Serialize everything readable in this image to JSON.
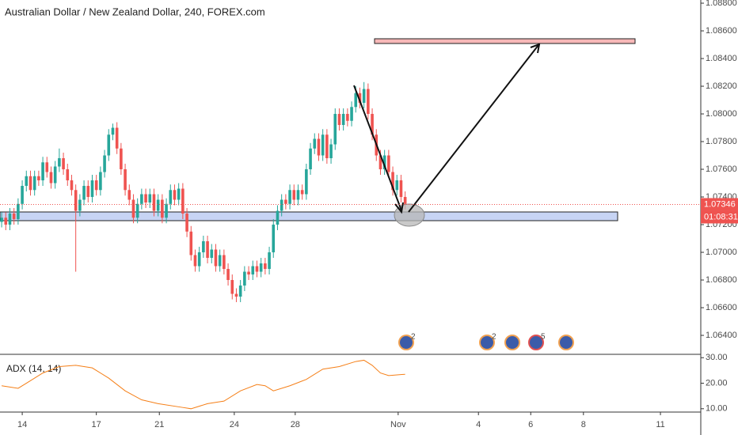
{
  "chart_data": [
    {
      "type": "candlestick",
      "title": "Australian Dollar / New Zealand Dollar, 240, FOREX.com",
      "xlim": [
        -0.4,
        169.8
      ],
      "xticks": [
        {
          "value": 5,
          "label": "14"
        },
        {
          "value": 23,
          "label": "17"
        },
        {
          "value": 38.3,
          "label": "21"
        },
        {
          "value": 56.5,
          "label": "24"
        },
        {
          "value": 71.3,
          "label": "28"
        },
        {
          "value": 96.3,
          "label": "Nov"
        },
        {
          "value": 115.8,
          "label": "4"
        },
        {
          "value": 128.5,
          "label": "6"
        },
        {
          "value": 141.3,
          "label": "8"
        },
        {
          "value": 160,
          "label": "11"
        }
      ],
      "ylim": [
        1.06263,
        1.08823
      ],
      "yticks": [
        {
          "value": 1.088,
          "label": "1.08800"
        },
        {
          "value": 1.086,
          "label": "1.08600"
        },
        {
          "value": 1.084,
          "label": "1.08400"
        },
        {
          "value": 1.082,
          "label": "1.08200"
        },
        {
          "value": 1.08,
          "label": "1.08000"
        },
        {
          "value": 1.078,
          "label": "1.07800"
        },
        {
          "value": 1.076,
          "label": "1.07600"
        },
        {
          "value": 1.074,
          "label": "1.07400"
        },
        {
          "value": 1.072,
          "label": "1.07200"
        },
        {
          "value": 1.07,
          "label": "1.07000"
        },
        {
          "value": 1.068,
          "label": "1.06800"
        },
        {
          "value": 1.066,
          "label": "1.06600"
        },
        {
          "value": 1.064,
          "label": "1.06400"
        }
      ],
      "up_color": "#26a69a",
      "down_color": "#ef5350",
      "open": [
        1.0722,
        1.0725,
        1.072,
        1.0728,
        1.0724,
        1.0735,
        1.0748,
        1.0755,
        1.0745,
        1.0755,
        1.0752,
        1.0765,
        1.0758,
        1.075,
        1.0762,
        1.0768,
        1.076,
        1.0752,
        1.0745,
        1.073,
        1.0738,
        1.0748,
        1.074,
        1.0752,
        1.0745,
        1.0758,
        1.077,
        1.0785,
        1.079,
        1.0775,
        1.076,
        1.0745,
        1.0738,
        1.0725,
        1.0735,
        1.0742,
        1.0736,
        1.0742,
        1.073,
        1.0738,
        1.0725,
        1.0735,
        1.0745,
        1.0738,
        1.0746,
        1.0728,
        1.0715,
        1.0698,
        1.069,
        1.07,
        1.0708,
        1.0696,
        1.0702,
        1.069,
        1.0698,
        1.0688,
        1.068,
        1.067,
        1.0668,
        1.0676,
        1.0686,
        1.0684,
        1.069,
        1.0686,
        1.0692,
        1.0688,
        1.07,
        1.072,
        1.073,
        1.0738,
        1.0735,
        1.0745,
        1.0738,
        1.0745,
        1.0742,
        1.076,
        1.0775,
        1.0782,
        1.077,
        1.0785,
        1.0768,
        1.0778,
        1.08,
        1.0792,
        1.08,
        1.0795,
        1.0805,
        1.0815,
        1.0808,
        1.0818,
        1.08,
        1.0785,
        1.077,
        1.076,
        1.077,
        1.0758,
        1.0745,
        1.0752,
        1.074
      ],
      "high": [
        1.0729,
        1.0729,
        1.0732,
        1.0732,
        1.0739,
        1.0752,
        1.0759,
        1.0759,
        1.0759,
        1.0759,
        1.0769,
        1.0769,
        1.0762,
        1.0766,
        1.0775,
        1.0772,
        1.0764,
        1.0756,
        1.0749,
        1.0742,
        1.0752,
        1.0752,
        1.0756,
        1.0756,
        1.0762,
        1.0774,
        1.0789,
        1.0793,
        1.0794,
        1.0779,
        1.0764,
        1.0749,
        1.0742,
        1.0739,
        1.0746,
        1.0746,
        1.0746,
        1.0746,
        1.0742,
        1.0742,
        1.0739,
        1.0749,
        1.0749,
        1.075,
        1.075,
        1.0732,
        1.0719,
        1.0702,
        1.0704,
        1.0712,
        1.0712,
        1.0706,
        1.0706,
        1.0702,
        1.0702,
        1.0692,
        1.0684,
        1.0674,
        1.068,
        1.069,
        1.069,
        1.0694,
        1.0694,
        1.0696,
        1.0696,
        1.0704,
        1.0724,
        1.0734,
        1.0742,
        1.0742,
        1.0749,
        1.0749,
        1.0749,
        1.0749,
        1.0764,
        1.0779,
        1.0786,
        1.0786,
        1.0789,
        1.0789,
        1.0782,
        1.0804,
        1.0804,
        1.0804,
        1.0804,
        1.0809,
        1.082,
        1.0819,
        1.0823,
        1.0822,
        1.0804,
        1.0789,
        1.0774,
        1.0774,
        1.0774,
        1.0762,
        1.0756,
        1.0756,
        1.0744
      ],
      "low": [
        1.0718,
        1.0716,
        1.0716,
        1.072,
        1.072,
        1.0731,
        1.0744,
        1.0741,
        1.0741,
        1.0748,
        1.0748,
        1.0754,
        1.0746,
        1.0746,
        1.0758,
        1.0756,
        1.0748,
        1.0741,
        1.0686,
        1.0726,
        1.0734,
        1.0736,
        1.0736,
        1.0741,
        1.0741,
        1.0754,
        1.0766,
        1.0781,
        1.0771,
        1.0756,
        1.0741,
        1.0734,
        1.0721,
        1.0721,
        1.0731,
        1.0732,
        1.0732,
        1.0726,
        1.0726,
        1.0721,
        1.0721,
        1.0731,
        1.0734,
        1.0734,
        1.0724,
        1.0711,
        1.0694,
        1.0686,
        1.0686,
        1.0696,
        1.0692,
        1.0692,
        1.0686,
        1.0686,
        1.0684,
        1.0676,
        1.0666,
        1.0664,
        1.0664,
        1.0672,
        1.068,
        1.068,
        1.0682,
        1.0682,
        1.0684,
        1.0684,
        1.0696,
        1.0716,
        1.0726,
        1.0731,
        1.0731,
        1.0734,
        1.0734,
        1.0738,
        1.0738,
        1.0756,
        1.0771,
        1.0766,
        1.0766,
        1.0764,
        1.0764,
        1.0774,
        1.0788,
        1.0788,
        1.0791,
        1.0791,
        1.0801,
        1.0804,
        1.0804,
        1.0796,
        1.0781,
        1.0766,
        1.0756,
        1.0756,
        1.0754,
        1.0741,
        1.0741,
        1.0736,
        1.0731
      ],
      "close": [
        1.0725,
        1.072,
        1.0728,
        1.0724,
        1.0735,
        1.0748,
        1.0755,
        1.0745,
        1.0755,
        1.0752,
        1.0765,
        1.0758,
        1.075,
        1.0762,
        1.0768,
        1.076,
        1.0752,
        1.0745,
        1.073,
        1.0738,
        1.0748,
        1.074,
        1.0752,
        1.0745,
        1.0758,
        1.077,
        1.0785,
        1.079,
        1.0775,
        1.076,
        1.0745,
        1.0738,
        1.0725,
        1.0735,
        1.0742,
        1.0736,
        1.0742,
        1.073,
        1.0738,
        1.0725,
        1.0735,
        1.0745,
        1.0738,
        1.0746,
        1.0728,
        1.0715,
        1.0698,
        1.069,
        1.07,
        1.0708,
        1.0696,
        1.0702,
        1.069,
        1.0698,
        1.0688,
        1.068,
        1.067,
        1.0668,
        1.0676,
        1.0686,
        1.0684,
        1.069,
        1.0686,
        1.0692,
        1.0688,
        1.07,
        1.072,
        1.073,
        1.0738,
        1.0735,
        1.0745,
        1.0738,
        1.0745,
        1.0742,
        1.076,
        1.0775,
        1.0782,
        1.077,
        1.0785,
        1.0768,
        1.0778,
        1.08,
        1.0792,
        1.08,
        1.0795,
        1.0805,
        1.0815,
        1.0808,
        1.0818,
        1.08,
        1.0785,
        1.077,
        1.076,
        1.077,
        1.0758,
        1.0745,
        1.0752,
        1.074,
        1.0735
      ],
      "last_price": 1.07346,
      "last_price_color": "#ef5350",
      "countdown": "01:08:31",
      "event_counts": [
        2,
        2,
        5
      ]
    },
    {
      "type": "line",
      "title": "ADX (14, 14)",
      "color": "#f57f17",
      "xlim": [
        -0.4,
        169.8
      ],
      "x": [
        0,
        4,
        6,
        10,
        14,
        18,
        22,
        26,
        30,
        34,
        38,
        44,
        46,
        50,
        54,
        58,
        62,
        64,
        66,
        70,
        74,
        78,
        82,
        86,
        88,
        90,
        92,
        94,
        98
      ],
      "values": [
        19,
        18,
        20,
        24,
        26.5,
        27,
        26,
        22,
        17,
        13.5,
        12,
        10.5,
        10,
        12,
        13,
        17,
        19.5,
        19,
        17,
        19,
        21.5,
        25.5,
        26.5,
        28.5,
        29,
        27,
        24,
        23,
        23.5
      ],
      "ylim": [
        8.7,
        31
      ],
      "yticks": [
        {
          "value": 30,
          "label": "30.00"
        },
        {
          "value": 20,
          "label": "20.00"
        },
        {
          "value": 10,
          "label": "10.00"
        }
      ]
    }
  ]
}
